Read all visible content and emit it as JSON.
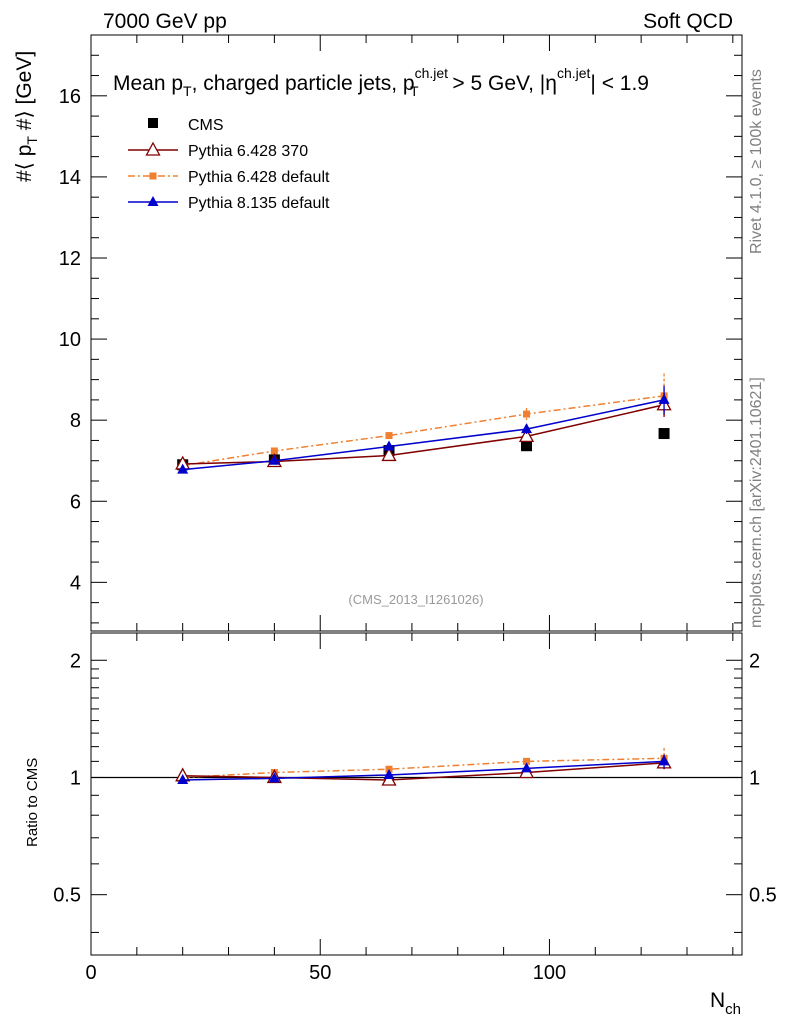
{
  "header": {
    "energy": "7000 GeV pp",
    "process": "Soft QCD"
  },
  "side_labels": {
    "rivet": "Rivet 4.1.0, ≥ 100k events",
    "mcplots": "mcplots.cern.ch [arXiv:2401.10621]"
  },
  "chart_data": {
    "type": "scatter",
    "title": {
      "prefix": "Mean p",
      "sub": "T",
      "middle": ", charged particle jets, p",
      "sup2": "ch.jet",
      "sub2": "T",
      "tail": " > 5 GeV,  |η",
      "sup3": "ch.jet",
      "tail2": "| < 1.9"
    },
    "analysis_id": "(CMS_2013_I1261026)",
    "xlabel": {
      "main": "N",
      "sub": "ch"
    },
    "ylabel": {
      "main": "#⟨ p",
      "sub": "T",
      "tail": " #⟩ [GeV]"
    },
    "ratio_ylabel": "Ratio to CMS",
    "xlim": [
      0,
      142
    ],
    "ylim": [
      2.8,
      17.5
    ],
    "ratio_ylim": [
      0.35,
      2.35
    ],
    "xticks": [
      0,
      50,
      100
    ],
    "xtick_labels": [
      "0",
      "50",
      "100"
    ],
    "yticks": [
      4,
      6,
      8,
      10,
      12,
      14,
      16
    ],
    "ytick_labels": [
      "4",
      "6",
      "8",
      "10",
      "12",
      "14",
      "16"
    ],
    "ratio_yticks": [
      0.5,
      1,
      2
    ],
    "ratio_ytick_labels": [
      "0.5",
      "1",
      "2"
    ],
    "legend_position": "top-left",
    "series": [
      {
        "name": "CMS",
        "color": "#000000",
        "marker": "square",
        "line": "none",
        "x": [
          20,
          40,
          65,
          95,
          125
        ],
        "y": [
          6.9,
          7.02,
          7.25,
          7.37,
          7.67
        ],
        "err": [
          0,
          0,
          0,
          0,
          0
        ],
        "ratio": [
          1,
          1,
          1,
          1,
          1
        ]
      },
      {
        "name": "Pythia 6.428 370",
        "color": "#800000",
        "marker": "triangle-open",
        "line": "solid",
        "x": [
          20,
          40,
          65,
          95,
          125
        ],
        "y": [
          6.92,
          6.98,
          7.13,
          7.6,
          8.38
        ],
        "err": [
          0.03,
          0.04,
          0.05,
          0.12,
          0.3
        ],
        "ratio": [
          1.01,
          1.0,
          0.985,
          1.03,
          1.09
        ]
      },
      {
        "name": "Pythia 6.428 default",
        "color": "#f08030",
        "marker": "square-small",
        "line": "dashdot",
        "x": [
          20,
          40,
          65,
          95,
          125
        ],
        "y": [
          6.88,
          7.24,
          7.62,
          8.15,
          8.6
        ],
        "err": [
          0.03,
          0.04,
          0.06,
          0.15,
          0.55
        ],
        "ratio": [
          1.0,
          1.03,
          1.05,
          1.1,
          1.12
        ]
      },
      {
        "name": "Pythia 8.135 default",
        "color": "#0000cc",
        "marker": "triangle",
        "line": "solid",
        "x": [
          20,
          40,
          65,
          95,
          125
        ],
        "y": [
          6.78,
          7.0,
          7.35,
          7.78,
          8.5
        ],
        "err": [
          0.03,
          0.04,
          0.05,
          0.12,
          0.35
        ],
        "ratio": [
          0.985,
          0.995,
          1.015,
          1.055,
          1.1
        ]
      }
    ]
  }
}
